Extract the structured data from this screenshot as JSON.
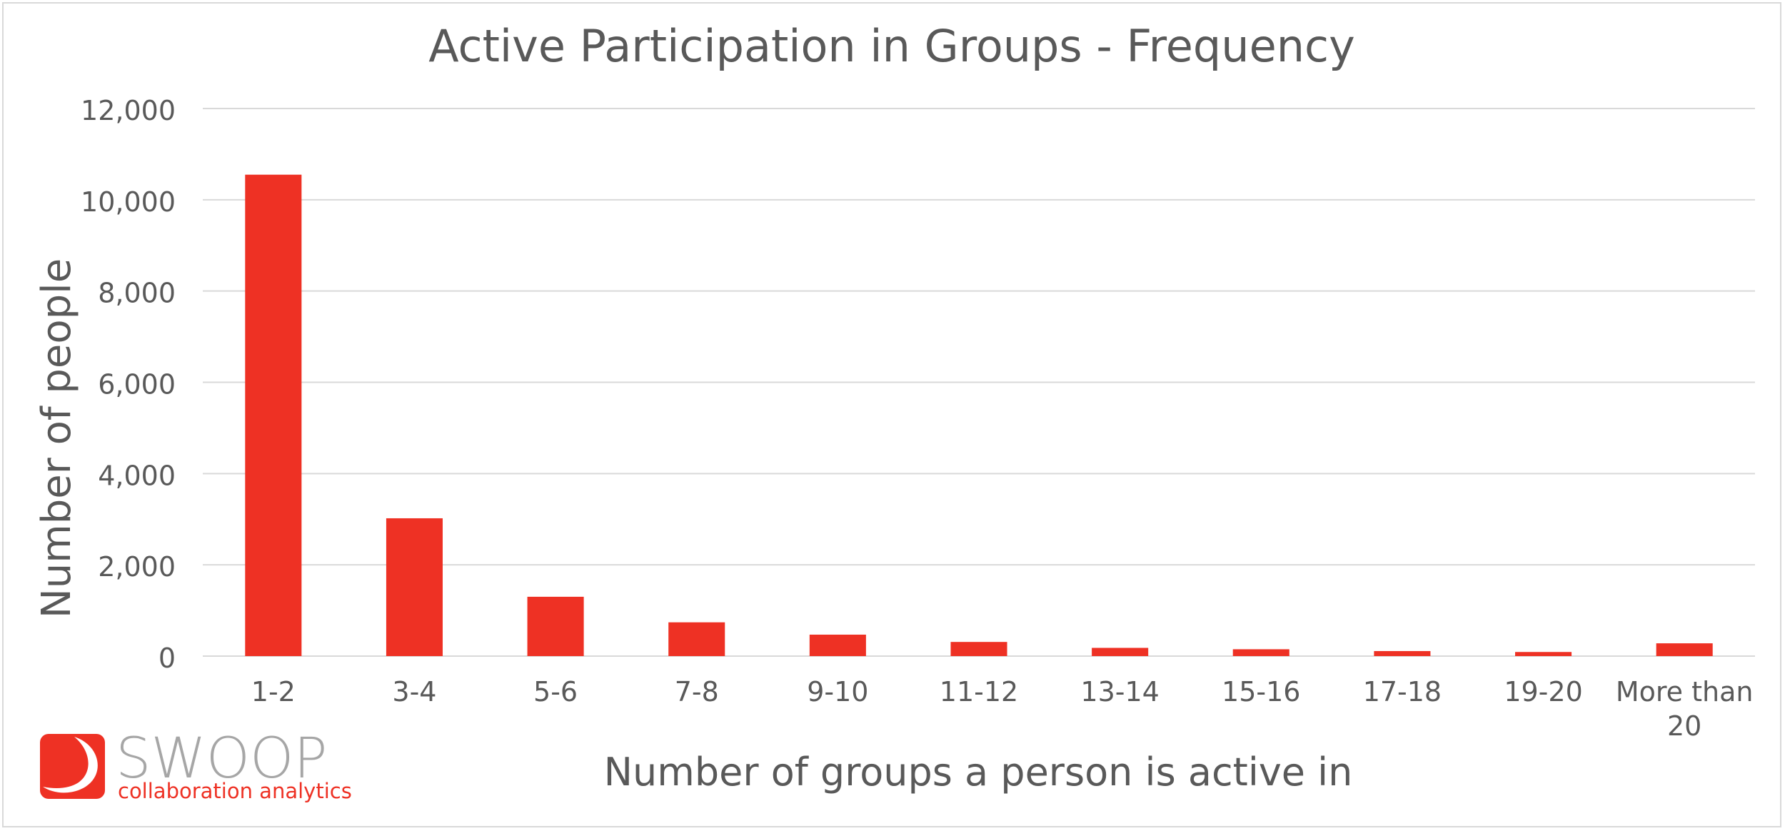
{
  "chart_data": {
    "type": "bar",
    "title": "Active Participation in Groups - Frequency",
    "xlabel": "Number of groups a person is active in",
    "ylabel": "Number of people",
    "categories": [
      "1-2",
      "3-4",
      "5-6",
      "7-8",
      "9-10",
      "11-12",
      "13-14",
      "15-16",
      "17-18",
      "19-20",
      "More than 20"
    ],
    "category_lines": [
      [
        "1-2"
      ],
      [
        "3-4"
      ],
      [
        "5-6"
      ],
      [
        "7-8"
      ],
      [
        "9-10"
      ],
      [
        "11-12"
      ],
      [
        "13-14"
      ],
      [
        "15-16"
      ],
      [
        "17-18"
      ],
      [
        "19-20"
      ],
      [
        "More than",
        "20"
      ]
    ],
    "values": [
      10550,
      3020,
      1300,
      740,
      470,
      310,
      180,
      150,
      110,
      90,
      280
    ],
    "ylim": [
      0,
      12000
    ],
    "yticks": [
      0,
      2000,
      4000,
      6000,
      8000,
      10000,
      12000
    ],
    "ytick_labels": [
      "0",
      "2,000",
      "4,000",
      "6,000",
      "8,000",
      "10,000",
      "12,000"
    ],
    "grid": true,
    "legend": "none",
    "colors": {
      "bar": "#ee3124",
      "grid": "#d9d9d9",
      "text": "#595959"
    }
  },
  "logo": {
    "name": "SWOOP",
    "tagline": "collaboration analytics",
    "colors": {
      "mark": "#ee3124",
      "word": "#a6a6a6",
      "tagline": "#ee3124"
    }
  }
}
